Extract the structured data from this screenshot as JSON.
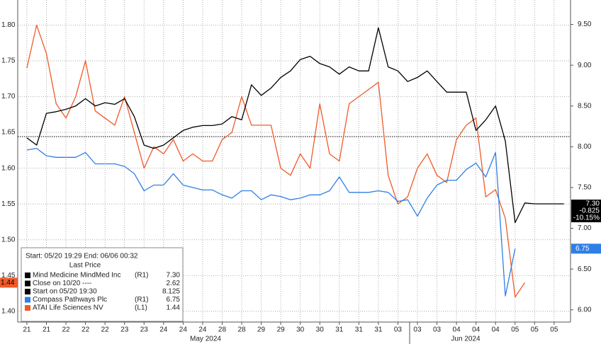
{
  "chart_data": {
    "type": "line",
    "legend_header": "Start: 05/20 19:29 End: 06/06 00:32",
    "legend_subheader": "Last Price",
    "month_labels": [
      "May 2024",
      "Jun 2024"
    ],
    "last_price_box": [
      "7.30",
      "-0.825",
      "-10.15%"
    ],
    "grid": true,
    "x": [
      0,
      0.5,
      1,
      1.5,
      2,
      2.5,
      3,
      3.5,
      4,
      4.5,
      5,
      5.5,
      6,
      6.5,
      7,
      7.5,
      8,
      8.5,
      9,
      9.5,
      10,
      10.5,
      11,
      11.5,
      12,
      12.5,
      13,
      13.5,
      14,
      14.5,
      15,
      15.5,
      16,
      16.5,
      17,
      17.5,
      18,
      18.5,
      19,
      19.5,
      20,
      20.5,
      21,
      21.5,
      22,
      22.5,
      23,
      23.5,
      24,
      24.5,
      25,
      25.5,
      26,
      26.5,
      27,
      27.5
    ],
    "xlim": [
      -0.47,
      27.84
    ],
    "xticks": [
      {
        "value": 0,
        "label": "21"
      },
      {
        "value": 1,
        "label": "21"
      },
      {
        "value": 2,
        "label": "22"
      },
      {
        "value": 3,
        "label": "22"
      },
      {
        "value": 4,
        "label": "22"
      },
      {
        "value": 5,
        "label": "23"
      },
      {
        "value": 6,
        "label": "23"
      },
      {
        "value": 7,
        "label": "24"
      },
      {
        "value": 8,
        "label": "24"
      },
      {
        "value": 9,
        "label": "24"
      },
      {
        "value": 10,
        "label": "28"
      },
      {
        "value": 11,
        "label": "28"
      },
      {
        "value": 12,
        "label": "29"
      },
      {
        "value": 13,
        "label": "29"
      },
      {
        "value": 14,
        "label": "30"
      },
      {
        "value": 15,
        "label": "30"
      },
      {
        "value": 16,
        "label": "31"
      },
      {
        "value": 17,
        "label": "31"
      },
      {
        "value": 18,
        "label": "31"
      },
      {
        "value": 19,
        "label": "03"
      },
      {
        "value": 20,
        "label": "03"
      },
      {
        "value": 21,
        "label": "03"
      },
      {
        "value": 22,
        "label": "04"
      },
      {
        "value": 23,
        "label": "04"
      },
      {
        "value": 24,
        "label": "04"
      },
      {
        "value": 25,
        "label": "05"
      },
      {
        "value": 26,
        "label": "05"
      },
      {
        "value": 27,
        "label": "05"
      }
    ],
    "ylim": [
      1.385,
      1.835
    ],
    "yticks": [
      {
        "value": 1.4,
        "label": "1.40"
      },
      {
        "value": 1.45,
        "label": "1.45"
      },
      {
        "value": 1.5,
        "label": "1.50"
      },
      {
        "value": 1.55,
        "label": "1.55"
      },
      {
        "value": 1.6,
        "label": "1.60"
      },
      {
        "value": 1.65,
        "label": "1.65"
      },
      {
        "value": 1.7,
        "label": "1.70"
      },
      {
        "value": 1.75,
        "label": "1.75"
      },
      {
        "value": 1.8,
        "label": "1.80"
      }
    ],
    "y2lim": [
      5.85,
      9.8
    ],
    "y2ticks": [
      {
        "value": 6,
        "label": "6.00"
      },
      {
        "value": 6.5,
        "label": "6.50"
      },
      {
        "value": 7,
        "label": "7.00"
      },
      {
        "value": 7.5,
        "label": "7.50"
      },
      {
        "value": 8,
        "label": "8.00"
      },
      {
        "value": 8.5,
        "label": "8.50"
      },
      {
        "value": 9,
        "label": "9.00"
      },
      {
        "value": 9.5,
        "label": "9.50"
      }
    ],
    "series": [
      {
        "name": "Mind Medicine MindMed Inc",
        "axis_tag": "(R1)",
        "axis": "y2",
        "color": "#000000",
        "last": {
          "value": 7.3,
          "label": "7.30"
        },
        "values": [
          8.11,
          8.02,
          8.41,
          8.43,
          8.46,
          8.5,
          8.59,
          8.5,
          8.54,
          8.52,
          8.59,
          8.37,
          8.02,
          7.98,
          8.02,
          8.11,
          8.2,
          8.24,
          8.26,
          8.26,
          8.28,
          8.37,
          8.33,
          8.76,
          8.63,
          8.72,
          8.85,
          8.93,
          9.07,
          9.11,
          9.02,
          8.98,
          8.89,
          8.98,
          8.93,
          8.93,
          9.46,
          8.98,
          8.93,
          8.8,
          8.85,
          8.93,
          8.8,
          8.67,
          8.67,
          8.67,
          8.2,
          8.33,
          8.5,
          8.07,
          7.07,
          7.31,
          7.3,
          7.3,
          7.3,
          7.3
        ]
      },
      {
        "name": "Compass Pathways Plc",
        "axis_tag": "(R1)",
        "axis": "y2",
        "color": "#2f7fe6",
        "last": {
          "value": 6.75,
          "label": "6.75"
        },
        "values": [
          7.96,
          7.98,
          7.89,
          7.87,
          7.87,
          7.87,
          7.93,
          7.79,
          7.79,
          7.79,
          7.76,
          7.67,
          7.46,
          7.53,
          7.53,
          7.67,
          7.53,
          7.5,
          7.47,
          7.47,
          7.41,
          7.37,
          7.46,
          7.46,
          7.35,
          7.41,
          7.39,
          7.35,
          7.37,
          7.41,
          7.41,
          7.46,
          7.63,
          7.44,
          7.44,
          7.44,
          7.46,
          7.44,
          7.33,
          7.35,
          7.15,
          7.37,
          7.53,
          7.59,
          7.59,
          7.72,
          7.8,
          7.63,
          7.93,
          6.17,
          6.75,
          null,
          null,
          null,
          null,
          null
        ]
      },
      {
        "name": "ATAI Life Sciences NV",
        "axis_tag": "(L1)",
        "axis": "y",
        "color": "#f05a28",
        "last": {
          "value": 1.44,
          "label": "1.44"
        },
        "values": [
          1.74,
          1.8,
          1.76,
          1.69,
          1.67,
          1.7,
          1.75,
          1.68,
          1.67,
          1.66,
          1.7,
          1.65,
          1.6,
          1.63,
          1.62,
          1.64,
          1.61,
          1.62,
          1.61,
          1.61,
          1.64,
          1.65,
          1.7,
          1.66,
          1.66,
          1.66,
          1.6,
          1.59,
          1.62,
          1.6,
          1.69,
          1.62,
          1.61,
          1.69,
          1.7,
          1.71,
          1.72,
          1.59,
          1.55,
          1.56,
          1.6,
          1.62,
          1.59,
          1.58,
          1.64,
          1.66,
          1.67,
          1.56,
          1.57,
          1.53,
          1.42,
          1.44,
          null,
          null,
          null,
          null
        ]
      }
    ],
    "reference_lines": [
      {
        "name": "Close on 10/20 ----",
        "value": 2.62,
        "axis": "y2",
        "color": "#000000"
      },
      {
        "name": "Start on 05/20 19:30",
        "value": 8.125,
        "axis": "y2",
        "color": "#000000"
      }
    ]
  }
}
